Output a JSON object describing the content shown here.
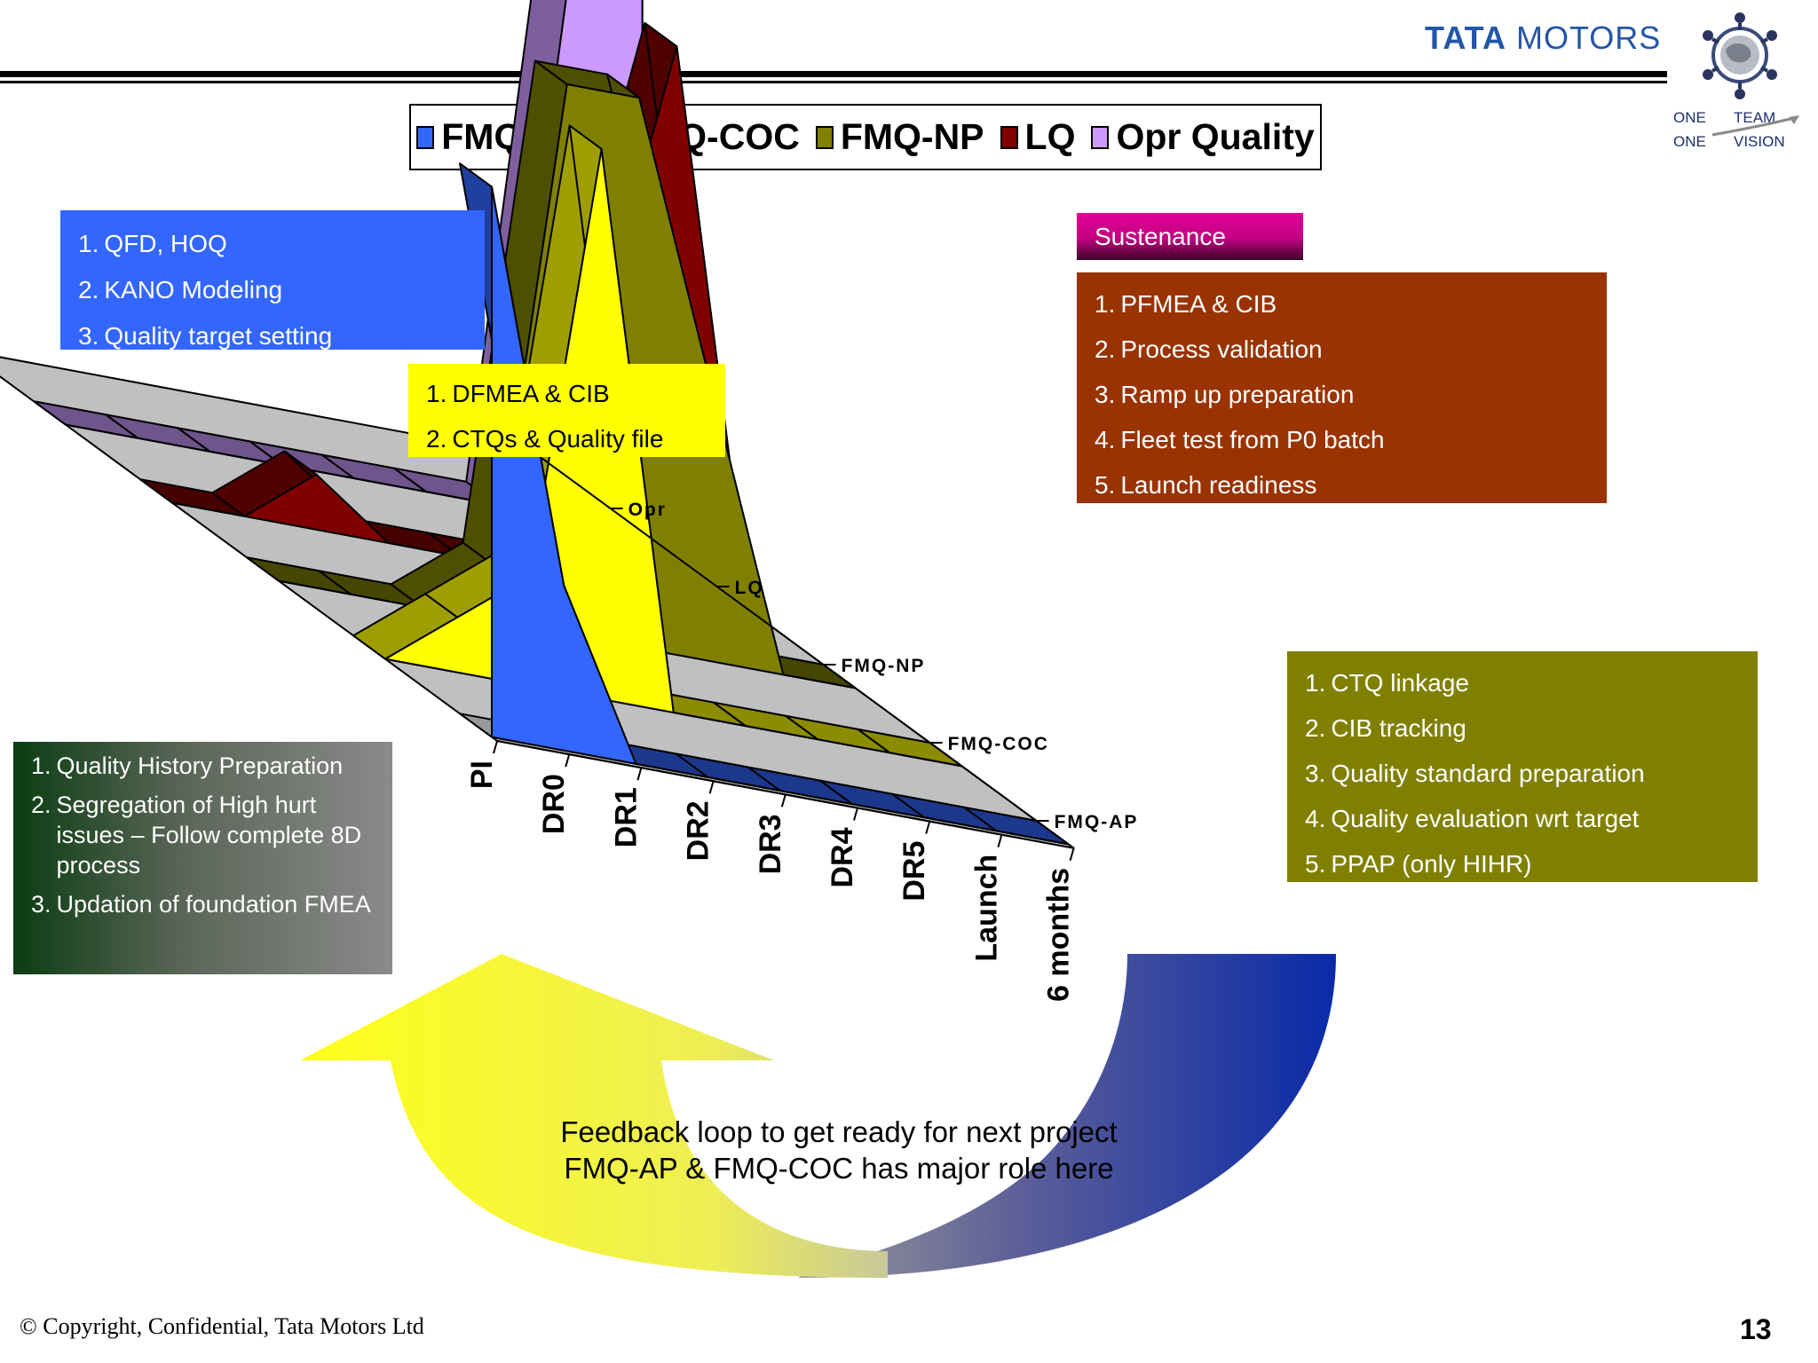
{
  "header": {
    "brand_bold": "TATA",
    "brand_rest": " MOTORS",
    "slogan_l1a": "ONE",
    "slogan_l1b": "TEAM",
    "slogan_l2a": "ONE",
    "slogan_l2b": "VISION"
  },
  "chart_data": {
    "type": "3d-area",
    "categories": [
      "PI",
      "DR0",
      "DR1",
      "DR2",
      "DR3",
      "DR4",
      "DR5",
      "Launch",
      "6 months"
    ],
    "series_axis_labels": [
      "FMQ-AP",
      "FMQ-COC",
      "FMQ-NP",
      "LQ",
      "Opr"
    ],
    "legend_position": "top",
    "series": [
      {
        "name": "FMQ-AP",
        "color": "#3366ff",
        "values": [
          10,
          3,
          0,
          0,
          0,
          0,
          0,
          0,
          0
        ]
      },
      {
        "name": "FMQ-COC",
        "color": "#ffff00",
        "values": [
          0,
          1,
          2,
          10,
          0,
          0,
          0,
          0,
          0
        ]
      },
      {
        "name": "FMQ-NP",
        "color": "#808000",
        "values": [
          0,
          0,
          0,
          1,
          10,
          10,
          5,
          0,
          0
        ]
      },
      {
        "name": "LQ",
        "color": "#800000",
        "values": [
          0,
          0,
          1,
          0,
          0,
          0,
          5,
          10,
          0
        ]
      },
      {
        "name": "Opr Quality",
        "color": "#cc99ff",
        "values": [
          0,
          0,
          0,
          0,
          0,
          0,
          0,
          10,
          10
        ]
      }
    ]
  },
  "boxes": {
    "qfd": [
      {
        "n": "1.",
        "t": "QFD, HOQ"
      },
      {
        "n": "2.",
        "t": "KANO Modeling"
      },
      {
        "n": "3.",
        "t": "Quality target setting"
      }
    ],
    "dfmea": [
      {
        "n": "1.",
        "t": "DFMEA & CIB"
      },
      {
        "n": "2.",
        "t": "CTQs & Quality file"
      }
    ],
    "sustenance": "Sustenance",
    "pfmea": [
      {
        "n": "1.",
        "t": "PFMEA & CIB"
      },
      {
        "n": "2.",
        "t": "Process validation"
      },
      {
        "n": "3.",
        "t": "Ramp up preparation"
      },
      {
        "n": "4.",
        "t": "Fleet test from P0 batch"
      },
      {
        "n": "5.",
        "t": "Launch readiness"
      }
    ],
    "ctq": [
      {
        "n": "1.",
        "t": "CTQ linkage"
      },
      {
        "n": "2.",
        "t": "CIB tracking"
      },
      {
        "n": "3.",
        "t": "Quality standard preparation"
      },
      {
        "n": "4.",
        "t": "Quality evaluation wrt target"
      },
      {
        "n": "5.",
        "t": "PPAP (only HIHR)"
      }
    ],
    "qhist": [
      {
        "n": "1.",
        "t": "Quality History Preparation"
      },
      {
        "n": "2.",
        "t": "Segregation of High hurt issues – Follow complete 8D process"
      },
      {
        "n": "3.",
        "t": "Updation of foundation FMEA"
      }
    ]
  },
  "feedback": {
    "line1": "Feedback loop to get ready for next project",
    "line2": "FMQ-AP & FMQ-COC has major role here"
  },
  "footer": {
    "copyright": "© Copyright, Confidential, Tata Motors Ltd",
    "page": "13"
  }
}
